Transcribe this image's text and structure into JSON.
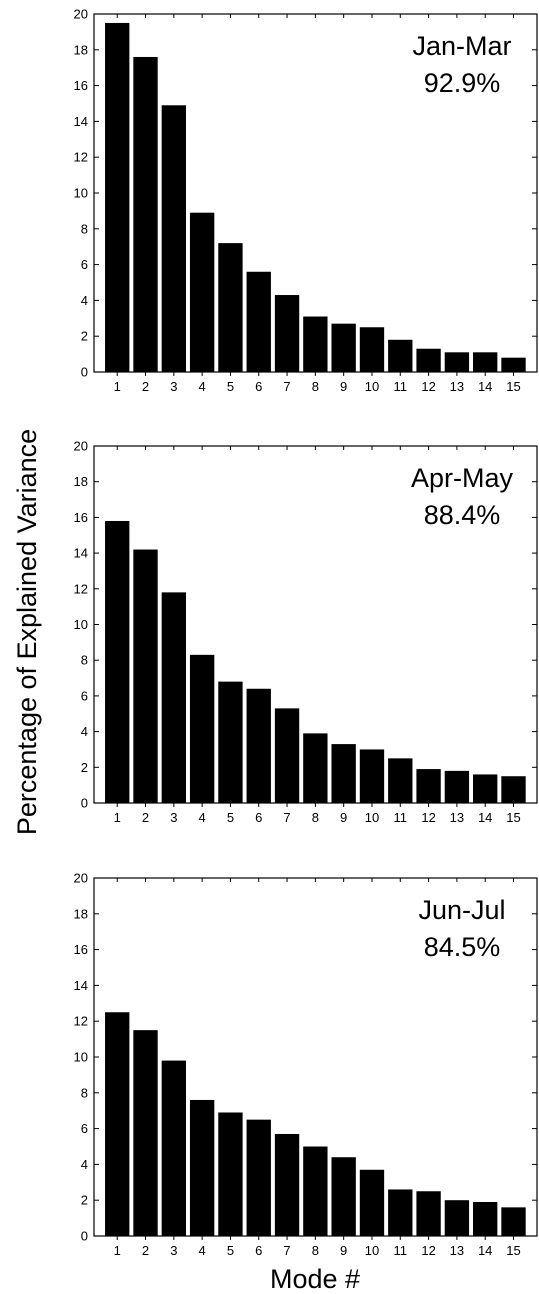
{
  "chart_data": [
    {
      "type": "bar",
      "categories": [
        "1",
        "2",
        "3",
        "4",
        "5",
        "6",
        "7",
        "8",
        "9",
        "10",
        "11",
        "12",
        "13",
        "14",
        "15"
      ],
      "values": [
        19.5,
        17.6,
        14.9,
        8.9,
        7.2,
        5.6,
        4.3,
        3.1,
        2.7,
        2.5,
        1.8,
        1.3,
        1.1,
        1.1,
        0.8
      ],
      "title": "Jan-Mar",
      "subtitle": "92.9%",
      "ylim": [
        0,
        20
      ],
      "yticks": [
        0,
        2,
        4,
        6,
        8,
        10,
        12,
        14,
        16,
        18,
        20
      ],
      "grid": false,
      "bar_color": "#000000"
    },
    {
      "type": "bar",
      "categories": [
        "1",
        "2",
        "3",
        "4",
        "5",
        "6",
        "7",
        "8",
        "9",
        "10",
        "11",
        "12",
        "13",
        "14",
        "15"
      ],
      "values": [
        15.8,
        14.2,
        11.8,
        8.3,
        6.8,
        6.4,
        5.3,
        3.9,
        3.3,
        3.0,
        2.5,
        1.9,
        1.8,
        1.6,
        1.5
      ],
      "title": "Apr-May",
      "subtitle": "88.4%",
      "ylim": [
        0,
        20
      ],
      "yticks": [
        0,
        2,
        4,
        6,
        8,
        10,
        12,
        14,
        16,
        18,
        20
      ],
      "grid": false,
      "bar_color": "#000000"
    },
    {
      "type": "bar",
      "categories": [
        "1",
        "2",
        "3",
        "4",
        "5",
        "6",
        "7",
        "8",
        "9",
        "10",
        "11",
        "12",
        "13",
        "14",
        "15"
      ],
      "values": [
        12.5,
        11.5,
        9.8,
        7.6,
        6.9,
        6.5,
        5.7,
        5.0,
        4.4,
        3.7,
        2.6,
        2.5,
        2.0,
        1.9,
        1.6
      ],
      "title": "Jun-Jul",
      "subtitle": "84.5%",
      "ylim": [
        0,
        20
      ],
      "yticks": [
        0,
        2,
        4,
        6,
        8,
        10,
        12,
        14,
        16,
        18,
        20
      ],
      "grid": false,
      "bar_color": "#000000"
    }
  ],
  "ylabel": "Percentage of Explained Variance",
  "xlabel": "Mode #"
}
